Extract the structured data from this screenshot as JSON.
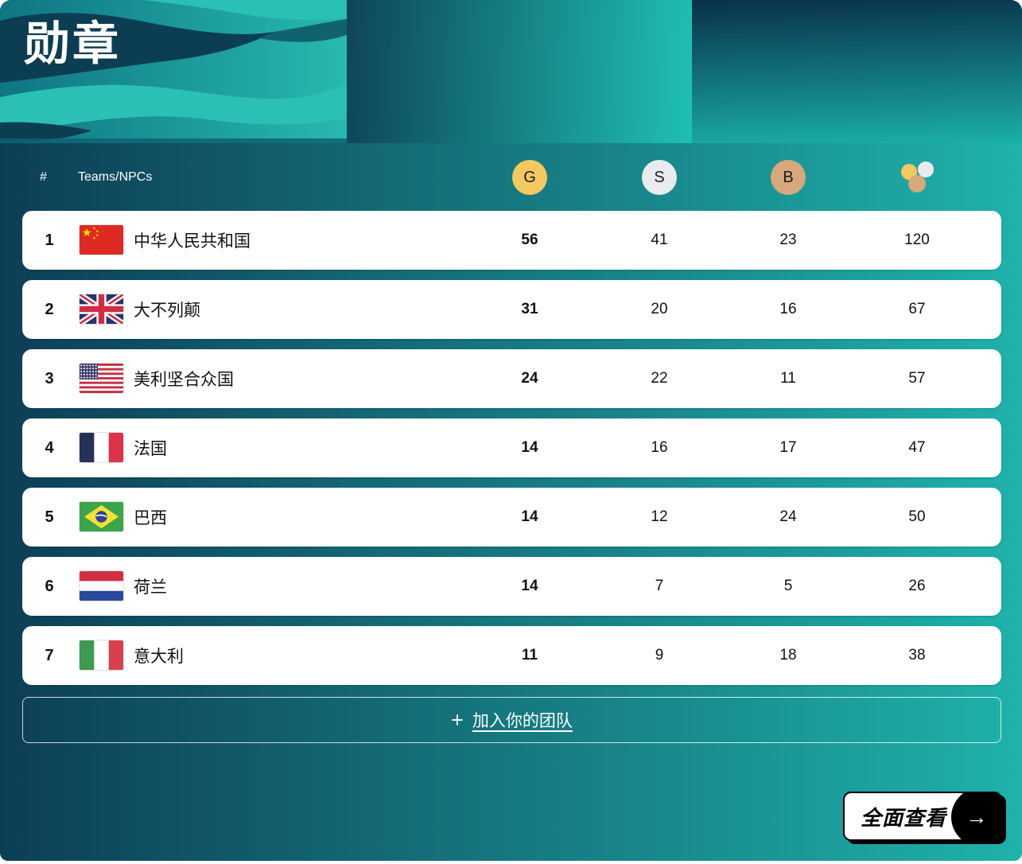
{
  "page": {
    "title": "勋章"
  },
  "table": {
    "header": {
      "rank": "#",
      "teams": "Teams/NPCs",
      "gold_label": "G",
      "silver_label": "S",
      "bronze_label": "B"
    },
    "rows": [
      {
        "rank": "1",
        "country": "中华人民共和国",
        "flag": "cn",
        "gold": "56",
        "silver": "41",
        "bronze": "23",
        "total": "120"
      },
      {
        "rank": "2",
        "country": "大不列颠",
        "flag": "gb",
        "gold": "31",
        "silver": "20",
        "bronze": "16",
        "total": "67"
      },
      {
        "rank": "3",
        "country": "美利坚合众国",
        "flag": "us",
        "gold": "24",
        "silver": "22",
        "bronze": "11",
        "total": "57"
      },
      {
        "rank": "4",
        "country": "法国",
        "flag": "fr",
        "gold": "14",
        "silver": "16",
        "bronze": "17",
        "total": "47"
      },
      {
        "rank": "5",
        "country": "巴西",
        "flag": "br",
        "gold": "14",
        "silver": "12",
        "bronze": "24",
        "total": "50"
      },
      {
        "rank": "6",
        "country": "荷兰",
        "flag": "nl",
        "gold": "14",
        "silver": "7",
        "bronze": "5",
        "total": "26"
      },
      {
        "rank": "7",
        "country": "意大利",
        "flag": "it",
        "gold": "11",
        "silver": "9",
        "bronze": "18",
        "total": "38"
      }
    ]
  },
  "buttons": {
    "join_plus": "+",
    "join_team": "加入你的团队",
    "view_all": "全面查看",
    "view_all_arrow": "→"
  },
  "colors": {
    "gold": "#F3C95F",
    "silver": "#E9EBEE",
    "bronze": "#D7A87B",
    "teal": "#1FB2AB",
    "navy": "#0D3E55"
  }
}
